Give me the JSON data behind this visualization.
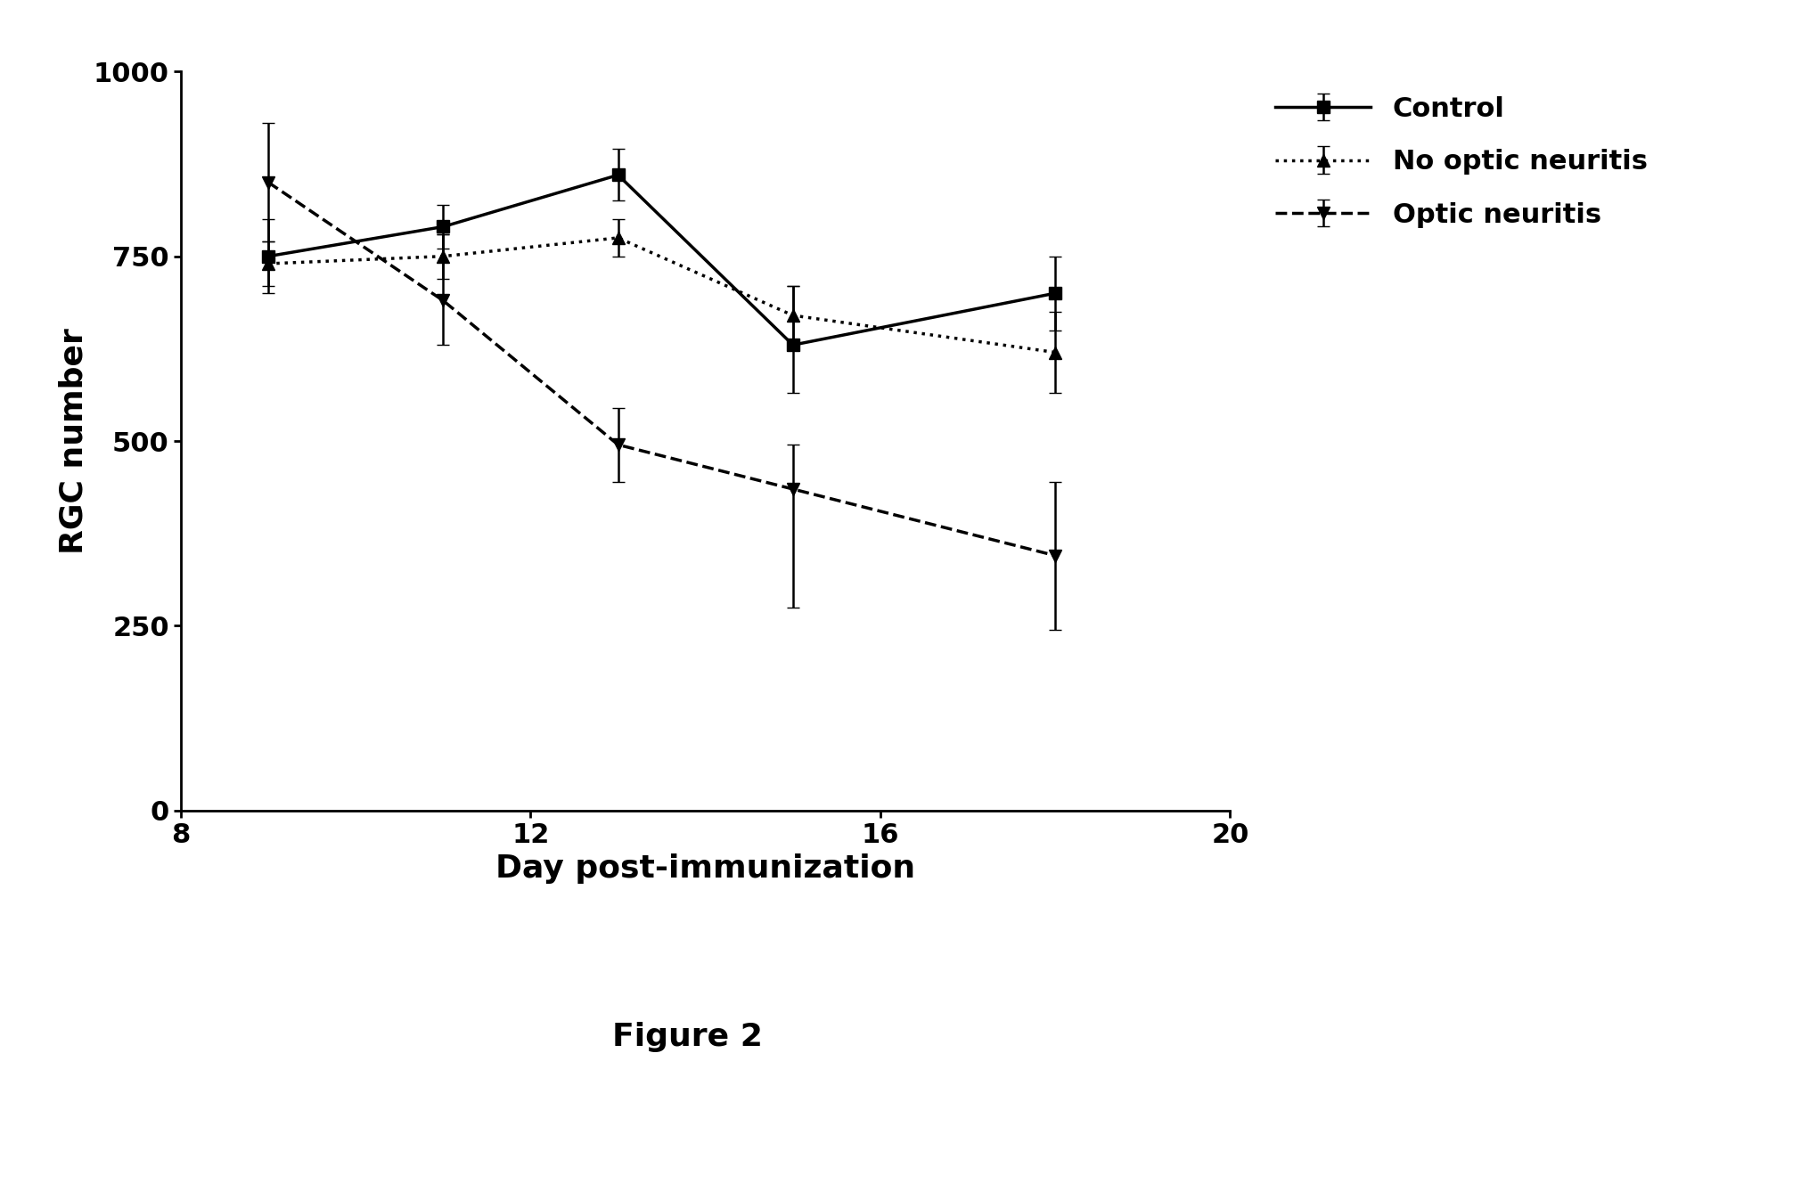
{
  "x_points": [
    9,
    11,
    13,
    15,
    18
  ],
  "control": {
    "y": [
      750,
      790,
      860,
      630,
      700
    ],
    "yerr_low": [
      50,
      30,
      35,
      65,
      50
    ],
    "yerr_high": [
      50,
      30,
      35,
      80,
      50
    ],
    "label": "Control",
    "linestyle": "solid",
    "marker": "s",
    "color": "#000000"
  },
  "no_optic": {
    "y": [
      740,
      750,
      775,
      670,
      620
    ],
    "yerr_low": [
      30,
      30,
      25,
      40,
      55
    ],
    "yerr_high": [
      30,
      30,
      25,
      40,
      55
    ],
    "label": "No optic neuritis",
    "linestyle": "dotted",
    "marker": "^",
    "color": "#000000"
  },
  "optic": {
    "y": [
      850,
      690,
      495,
      435,
      345
    ],
    "yerr_low": [
      80,
      60,
      50,
      160,
      100
    ],
    "yerr_high": [
      80,
      90,
      50,
      60,
      100
    ],
    "label": "Optic neuritis",
    "linestyle": "dashed",
    "marker": "v",
    "color": "#000000"
  },
  "xlabel": "Day post-immunization",
  "ylabel": "RGC number",
  "xlim": [
    8,
    20
  ],
  "ylim": [
    0,
    1000
  ],
  "xticks": [
    8,
    12,
    16,
    20
  ],
  "yticks": [
    0,
    250,
    500,
    750,
    1000
  ],
  "figure_label": "Figure 2",
  "background_color": "#ffffff",
  "axis_label_fontsize": 26,
  "tick_fontsize": 22,
  "legend_fontsize": 22,
  "figure_label_fontsize": 26
}
